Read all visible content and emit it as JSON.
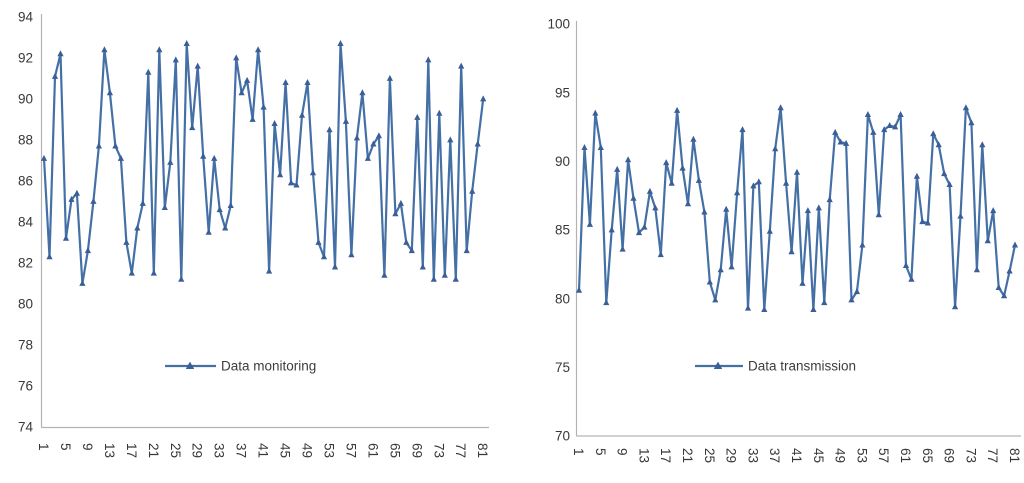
{
  "figure": {
    "background_color": "#ffffff",
    "description": "Two side-by-side line charts with triangle markers"
  },
  "chart_data": [
    {
      "type": "line",
      "title": "",
      "xlabel": "",
      "ylabel": "",
      "legend": "Data monitoring",
      "legend_position": "bottom-center-inside",
      "series_color": "#4470a6",
      "marker_color": "#3a5f98",
      "marker_shape": "triangle",
      "axis_color": "#b3b3b3",
      "tick_text_color": "#383838",
      "grid": false,
      "x_range": [
        1,
        81
      ],
      "ylim": [
        74,
        94
      ],
      "x_ticks": [
        1,
        5,
        9,
        13,
        17,
        21,
        25,
        29,
        33,
        37,
        41,
        45,
        49,
        53,
        57,
        61,
        65,
        69,
        73,
        77,
        81
      ],
      "y_ticks": [
        94,
        92,
        90,
        88,
        86,
        84,
        82,
        80,
        78,
        76,
        74
      ],
      "values": [
        87.1,
        82.3,
        91.1,
        92.2,
        83.2,
        85.1,
        85.4,
        81.0,
        82.6,
        85.0,
        87.7,
        92.4,
        90.3,
        87.7,
        87.1,
        83.0,
        81.5,
        83.7,
        84.9,
        91.3,
        81.5,
        92.4,
        84.7,
        86.9,
        91.9,
        81.2,
        92.7,
        88.6,
        91.6,
        87.2,
        83.5,
        87.1,
        84.6,
        83.7,
        84.8,
        92.0,
        90.3,
        90.9,
        89.0,
        92.4,
        89.6,
        81.6,
        88.8,
        86.3,
        90.8,
        85.9,
        85.8,
        89.2,
        90.8,
        86.4,
        83.0,
        82.3,
        88.5,
        81.8,
        92.7,
        88.9,
        82.4,
        88.1,
        90.3,
        87.1,
        87.8,
        88.2,
        81.4,
        91.0,
        84.4,
        84.9,
        83.0,
        82.6,
        89.1,
        81.8,
        91.9,
        81.2,
        89.3,
        81.4,
        88.0,
        81.2,
        91.6,
        82.6,
        85.5,
        87.8,
        90.0
      ]
    },
    {
      "type": "line",
      "title": "",
      "xlabel": "",
      "ylabel": "",
      "legend": "Data transmission",
      "legend_position": "bottom-center-inside",
      "series_color": "#4470a6",
      "marker_color": "#3a5f98",
      "marker_shape": "triangle",
      "axis_color": "#b3b3b3",
      "tick_text_color": "#383838",
      "grid": false,
      "x_range": [
        1,
        81
      ],
      "ylim": [
        70,
        100
      ],
      "x_ticks": [
        1,
        5,
        9,
        13,
        17,
        21,
        25,
        29,
        33,
        37,
        41,
        45,
        49,
        53,
        57,
        61,
        65,
        69,
        73,
        77,
        81
      ],
      "y_ticks": [
        100,
        95,
        90,
        85,
        80,
        75,
        70
      ],
      "values": [
        80.6,
        91.0,
        85.4,
        93.5,
        91.0,
        79.7,
        85.0,
        89.4,
        83.6,
        90.1,
        87.3,
        84.8,
        85.2,
        87.8,
        86.6,
        83.2,
        89.9,
        88.4,
        93.7,
        89.5,
        86.9,
        91.6,
        88.6,
        86.3,
        81.2,
        79.9,
        82.1,
        86.5,
        82.3,
        87.7,
        92.3,
        79.3,
        88.2,
        88.5,
        79.2,
        84.9,
        90.9,
        93.9,
        88.4,
        83.4,
        89.2,
        81.1,
        86.4,
        79.2,
        86.6,
        79.7,
        87.2,
        92.1,
        91.4,
        91.3,
        79.9,
        80.5,
        83.9,
        93.4,
        92.1,
        86.1,
        92.3,
        92.6,
        92.5,
        93.4,
        82.4,
        81.4,
        88.9,
        85.6,
        85.5,
        92.0,
        91.2,
        89.1,
        88.3,
        79.4,
        86.0,
        93.9,
        92.8,
        82.1,
        91.2,
        84.2,
        86.4,
        80.8,
        80.2,
        82.0,
        83.9
      ]
    }
  ]
}
